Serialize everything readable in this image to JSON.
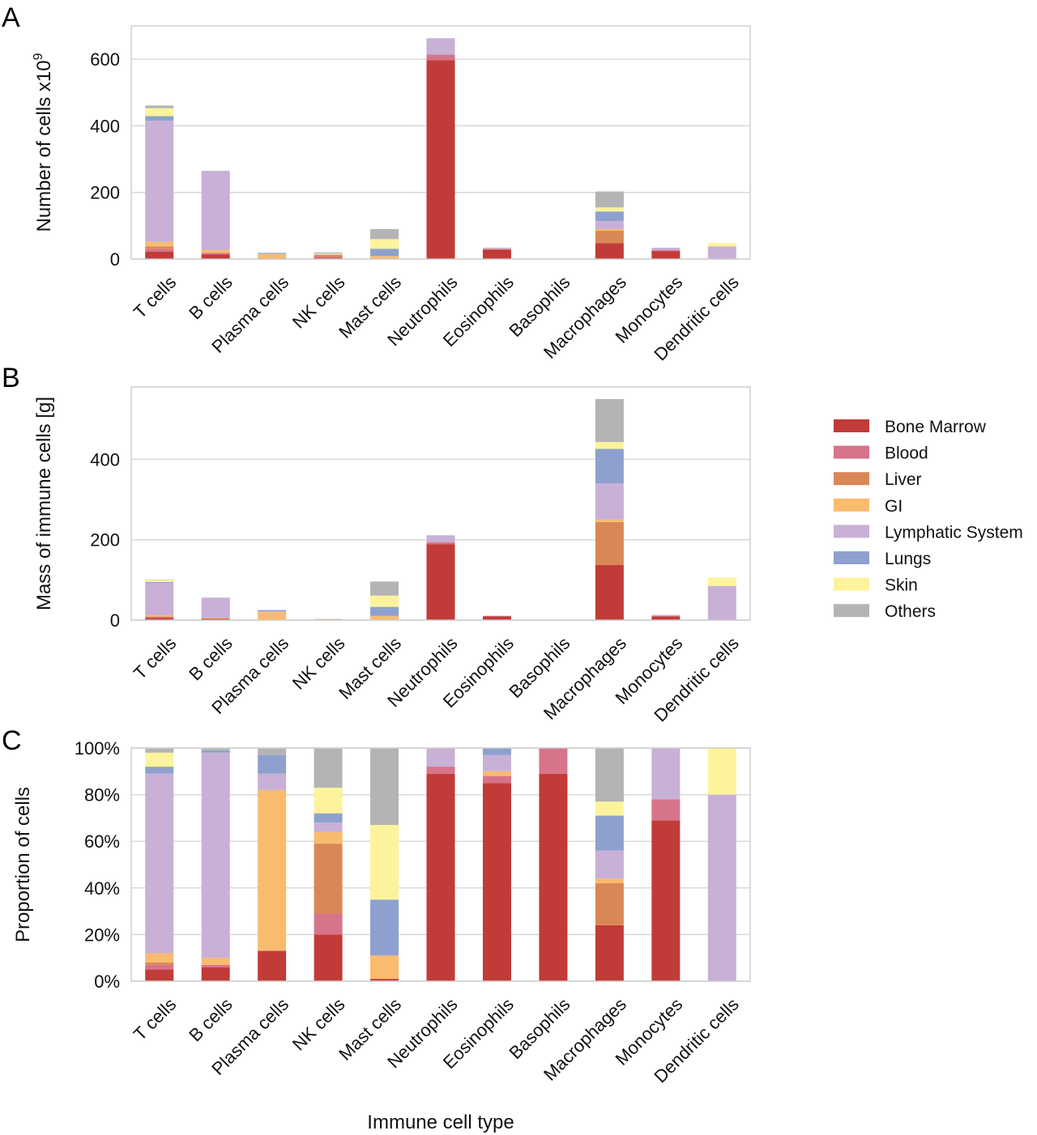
{
  "series_names": [
    "Bone Marrow",
    "Blood",
    "Liver",
    "GI",
    "Lymphatic System",
    "Lungs",
    "Skin",
    "Others"
  ],
  "colors": {
    "Bone Marrow": "#c13b38",
    "Blood": "#d6748a",
    "Liver": "#da8758",
    "GI": "#f9bb6d",
    "Lymphatic System": "#c8b0d6",
    "Lungs": "#8ea1ce",
    "Skin": "#fdf39c",
    "Others": "#b4b4b4"
  },
  "xlabel_bottom": "Immune cell type",
  "chart_data": [
    {
      "panel": "A",
      "type": "bar",
      "stacked": true,
      "ylabel": "Number of cells x10",
      "ylabel_superscript": "9",
      "ylim": [
        0,
        700
      ],
      "yticks": [
        0,
        200,
        400,
        600
      ],
      "ytick_labels": [
        "0",
        "200",
        "400",
        "600"
      ],
      "categories": [
        "T cells",
        "B cells",
        "Plasma cells",
        "NK cells",
        "Mast cells",
        "Neutrophils",
        "Eosinophils",
        "Basophils",
        "Macrophages",
        "Monocytes",
        "Dendritic cells"
      ],
      "series": [
        {
          "name": "Bone Marrow",
          "values": [
            22,
            14,
            2,
            4,
            1,
            597,
            28,
            0.5,
            48,
            24,
            0
          ]
        },
        {
          "name": "Blood",
          "values": [
            8,
            3,
            0,
            2,
            0,
            17,
            2,
            0.1,
            0,
            3,
            0
          ]
        },
        {
          "name": "Liver",
          "values": [
            8,
            2,
            0,
            6,
            0,
            0,
            0,
            0,
            37,
            0,
            0
          ]
        },
        {
          "name": "GI",
          "values": [
            14,
            8,
            13,
            1,
            8,
            0,
            1,
            0,
            5,
            0,
            0
          ]
        },
        {
          "name": "Lymphatic System",
          "values": [
            363,
            236,
            1,
            1,
            0,
            49,
            2,
            0,
            24,
            7,
            38
          ]
        },
        {
          "name": "Lungs",
          "values": [
            14,
            1,
            2,
            1,
            22,
            0,
            1,
            0,
            29,
            0,
            0
          ]
        },
        {
          "name": "Skin",
          "values": [
            24,
            0,
            0,
            2,
            29,
            0,
            0,
            0,
            12,
            0,
            10
          ]
        },
        {
          "name": "Others",
          "values": [
            8,
            1,
            1,
            3,
            30,
            0,
            0,
            0,
            48,
            0,
            0
          ]
        }
      ]
    },
    {
      "panel": "B",
      "type": "bar",
      "stacked": true,
      "ylabel": "Mass of immune cells [g]",
      "ylim": [
        0,
        580
      ],
      "yticks": [
        0,
        200,
        400
      ],
      "ytick_labels": [
        "0",
        "200",
        "400"
      ],
      "categories": [
        "T cells",
        "B cells",
        "Plasma cells",
        "NK cells",
        "Mast cells",
        "Neutrophils",
        "Eosinophils",
        "Basophils",
        "Macrophages",
        "Monocytes",
        "Dendritic cells"
      ],
      "series": [
        {
          "name": "Bone Marrow",
          "values": [
            5,
            3,
            1,
            0.5,
            1,
            189,
            9,
            0.1,
            137,
            9,
            0
          ]
        },
        {
          "name": "Blood",
          "values": [
            2,
            1,
            0,
            0.3,
            0,
            5,
            1,
            0,
            0,
            1,
            0
          ]
        },
        {
          "name": "Liver",
          "values": [
            2,
            0,
            0,
            1,
            0,
            0,
            0,
            0,
            107,
            0,
            0
          ]
        },
        {
          "name": "GI",
          "values": [
            3,
            2,
            19,
            0.2,
            9,
            0,
            0,
            0,
            6,
            0,
            0
          ]
        },
        {
          "name": "Lymphatic System",
          "values": [
            80,
            50,
            2,
            0.3,
            1,
            17,
            1,
            0,
            90,
            3,
            85
          ]
        },
        {
          "name": "Lungs",
          "values": [
            3,
            0,
            3,
            0.2,
            22,
            0,
            0,
            0,
            86,
            0,
            0
          ]
        },
        {
          "name": "Skin",
          "values": [
            5,
            0,
            0,
            0.3,
            28,
            0,
            0,
            0,
            17,
            0,
            21
          ]
        },
        {
          "name": "Others",
          "values": [
            1,
            0,
            0,
            0.5,
            35,
            0,
            0,
            0,
            107,
            0,
            0
          ]
        }
      ]
    },
    {
      "panel": "C",
      "type": "bar",
      "stacked": true,
      "ylabel": "Proportion of cells",
      "xlabel": "Immune cell type",
      "ylim": [
        0,
        100
      ],
      "yticks": [
        0,
        20,
        40,
        60,
        80,
        100
      ],
      "ytick_labels": [
        "0%",
        "20%",
        "40%",
        "60%",
        "80%",
        "100%"
      ],
      "categories": [
        "T cells",
        "B cells",
        "Plasma cells",
        "NK cells",
        "Mast cells",
        "Neutrophils",
        "Eosinophils",
        "Basophils",
        "Macrophages",
        "Monocytes",
        "Dendritic cells"
      ],
      "series": [
        {
          "name": "Bone Marrow",
          "values": [
            5,
            6,
            13,
            20,
            1,
            89,
            85,
            89,
            24,
            69,
            0
          ]
        },
        {
          "name": "Blood",
          "values": [
            2,
            1,
            0,
            9,
            0,
            3,
            3,
            11,
            0,
            9,
            0
          ]
        },
        {
          "name": "Liver",
          "values": [
            1,
            0,
            0,
            30,
            0,
            0,
            0,
            0,
            18,
            0,
            0
          ]
        },
        {
          "name": "GI",
          "values": [
            4,
            3,
            69,
            5,
            10,
            0,
            2,
            0,
            2,
            0,
            0
          ]
        },
        {
          "name": "Lymphatic System",
          "values": [
            77,
            88,
            7,
            4,
            0,
            8,
            7,
            0,
            12,
            22,
            80
          ]
        },
        {
          "name": "Lungs",
          "values": [
            3,
            1,
            8,
            4,
            24,
            0,
            3,
            0,
            15,
            0,
            0
          ]
        },
        {
          "name": "Skin",
          "values": [
            6,
            0,
            0,
            11,
            32,
            0,
            0,
            0,
            6,
            0,
            20
          ]
        },
        {
          "name": "Others",
          "values": [
            2,
            1,
            3,
            17,
            33,
            0,
            0,
            0,
            23,
            0,
            0
          ]
        }
      ]
    }
  ]
}
